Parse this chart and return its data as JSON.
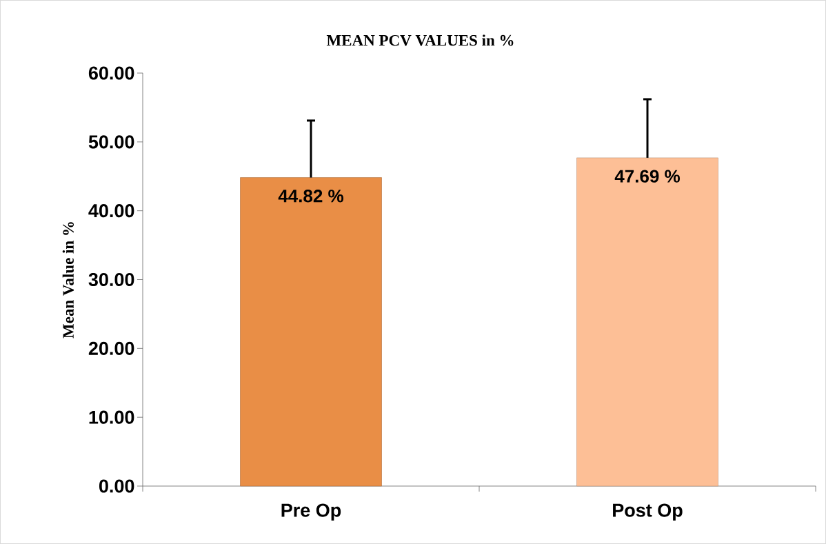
{
  "chart_data": {
    "type": "bar",
    "title": "MEAN PCV VALUES in %",
    "ylabel": "Mean Value in %",
    "categories": [
      "Pre Op",
      "Post Op"
    ],
    "values": [
      44.82,
      47.69
    ],
    "colors": [
      "#e98e46",
      "#fdbf96"
    ],
    "errors": [
      [
        44.82,
        53.1
      ],
      [
        47.69,
        56.2
      ]
    ],
    "value_labels": [
      "44.82 %",
      "47.69 %"
    ],
    "ylim": [
      0,
      60
    ],
    "yticks": [
      {
        "value": 0,
        "label": "0.00"
      },
      {
        "value": 10,
        "label": "10.00"
      },
      {
        "value": 20,
        "label": "20.00"
      },
      {
        "value": 30,
        "label": "30.00"
      },
      {
        "value": 40,
        "label": "40.00"
      },
      {
        "value": 50,
        "label": "50.00"
      },
      {
        "value": 60,
        "label": "60.00"
      }
    ]
  }
}
